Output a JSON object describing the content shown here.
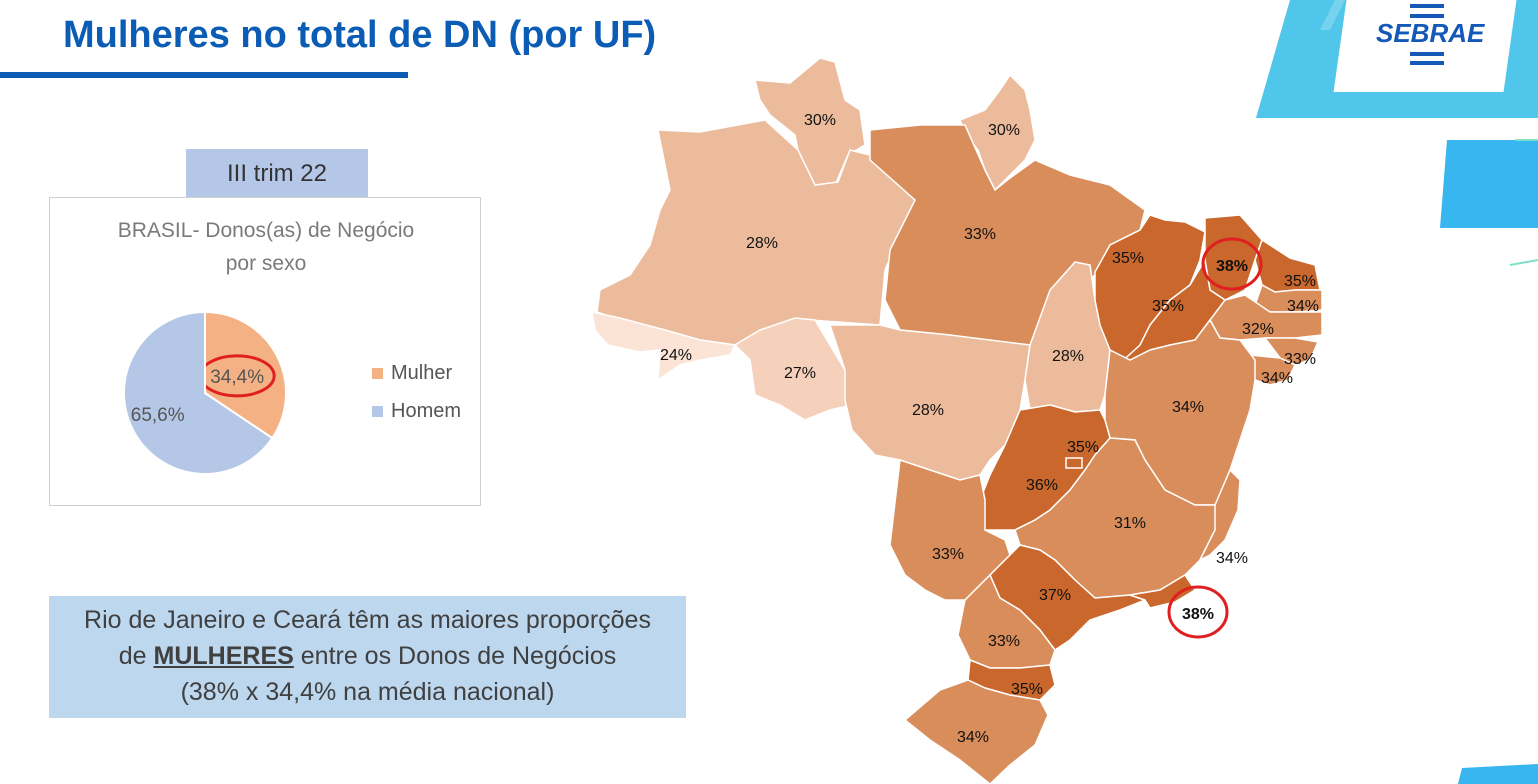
{
  "title": "Mulheres no total de DN (por UF)",
  "logo": "SEBRAE",
  "period_label": "III trim 22",
  "pie": {
    "title_line1": "BRASIL- Donos(as) de Negócio",
    "title_line2": "por sexo"
  },
  "note": {
    "line1": "Rio de Janeiro e Ceará têm as maiores proporções",
    "line2_pre": "de ",
    "line2_keyword": "MULHERES",
    "line2_post": " entre os Donos de Negócios",
    "line3": "(38% x 34,4% na média nacional)"
  },
  "colors": {
    "title_blue": "#0b5cb4",
    "mulher": "#f4b183",
    "homem": "#b4c7e7",
    "highlight_circle": "#e02020",
    "map_24": "#fbe3d6",
    "map_27": "#f5d1bb",
    "map_28_30": "#ecbb9b",
    "map_31_34": "#d98d5b",
    "map_35_38": "#c9672c"
  },
  "chart_data": [
    {
      "type": "pie",
      "title": "BRASIL- Donos(as) de Negócio por sexo",
      "categories": [
        "Mulher",
        "Homem"
      ],
      "values": [
        34.4,
        65.6
      ],
      "labels": [
        "34,4%",
        "65,6%"
      ],
      "legend": "right",
      "highlight": "Mulher"
    },
    {
      "type": "choropleth",
      "categories": [
        "RR",
        "AP",
        "AM",
        "PA",
        "AC",
        "RO",
        "MT",
        "TO",
        "MA",
        "CE",
        "RN",
        "PB",
        "PE",
        "AL",
        "SE",
        "PI",
        "BA",
        "GO",
        "DF",
        "MS",
        "MG",
        "ES",
        "SP",
        "RJ",
        "PR",
        "SC",
        "RS"
      ],
      "values": [
        30,
        30,
        28,
        33,
        24,
        27,
        28,
        28,
        35,
        38,
        35,
        34,
        32,
        33,
        34,
        35,
        34,
        36,
        35,
        33,
        31,
        34,
        37,
        38,
        33,
        35,
        34
      ],
      "labels": [
        "30%",
        "30%",
        "28%",
        "33%",
        "24%",
        "27%",
        "28%",
        "28%",
        "35%",
        "38%",
        "35%",
        "34%",
        "32%",
        "33%",
        "34%",
        "35%",
        "34%",
        "36%",
        "35%",
        "33%",
        "31%",
        "34%",
        "37%",
        "38%",
        "33%",
        "35%",
        "34%"
      ],
      "highlight": [
        "CE",
        "RJ"
      ]
    }
  ]
}
